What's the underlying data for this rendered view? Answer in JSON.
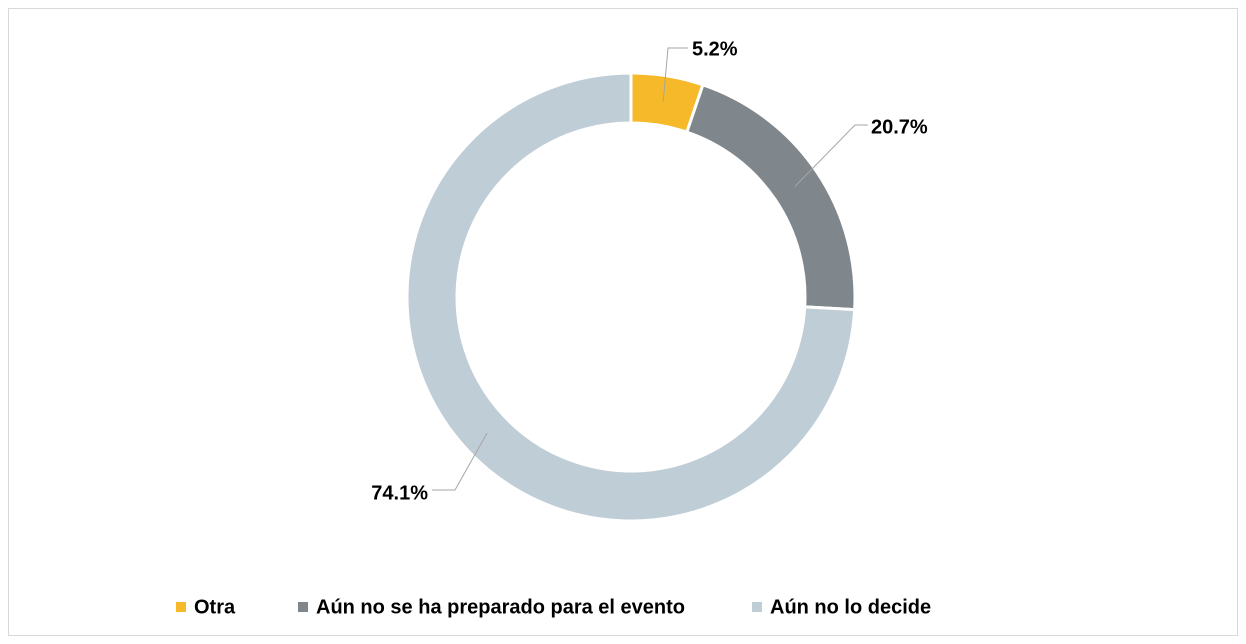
{
  "chart_data": {
    "type": "donut",
    "categories": [
      "Otra",
      "Aún no se ha preparado para el evento",
      "Aún no lo decide"
    ],
    "values": [
      5.2,
      20.7,
      74.1
    ],
    "value_labels": [
      "5.2%",
      "20.7%",
      "74.1%"
    ],
    "colors": [
      "#f5b92a",
      "#7f878d",
      "#bfcdd6"
    ],
    "legend": "bottom"
  }
}
